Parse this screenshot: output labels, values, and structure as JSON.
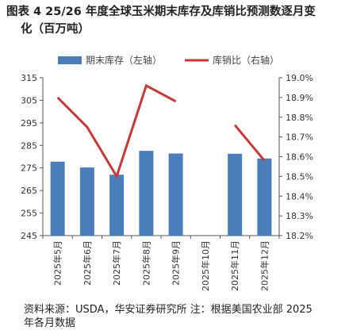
{
  "title": {
    "line1": "图表 4 25/26 年度全球玉米期末库存及库销比预测数逐月变",
    "line2": "化（百万吨）"
  },
  "source": {
    "line1": "资料来源：USDA，华安证券研究所 注：根据美国农业部 2025",
    "line2": "年各月数据"
  },
  "colors": {
    "bar": "#4a7ebb",
    "line": "#c8383a"
  },
  "chart_data": {
    "type": "bar",
    "categories": [
      "2025年5月",
      "2025年6月",
      "2025年7月",
      "2025年8月",
      "2025年9月",
      "2025年10月",
      "2025年11月",
      "2025年12月"
    ],
    "series": [
      {
        "name": "期末库存（左轴）",
        "type": "bar",
        "axis": "left",
        "values": [
          277.8,
          275.2,
          272.0,
          282.6,
          281.4,
          null,
          281.3,
          279.2
        ]
      },
      {
        "name": "库销比（右轴）",
        "type": "line",
        "axis": "right",
        "values": [
          18.9,
          18.75,
          18.5,
          18.96,
          18.88,
          null,
          18.76,
          18.58
        ]
      }
    ],
    "yleft": {
      "min": 245,
      "max": 315,
      "ticks": [
        "245",
        "255",
        "265",
        "275",
        "285",
        "295",
        "305",
        "315"
      ]
    },
    "yright": {
      "min": 18.2,
      "max": 19.0,
      "ticks": [
        "18.2%",
        "18.3%",
        "18.4%",
        "18.5%",
        "18.6%",
        "18.7%",
        "18.8%",
        "18.9%",
        "19.0%"
      ]
    },
    "legend_position": "top",
    "grid": false
  }
}
